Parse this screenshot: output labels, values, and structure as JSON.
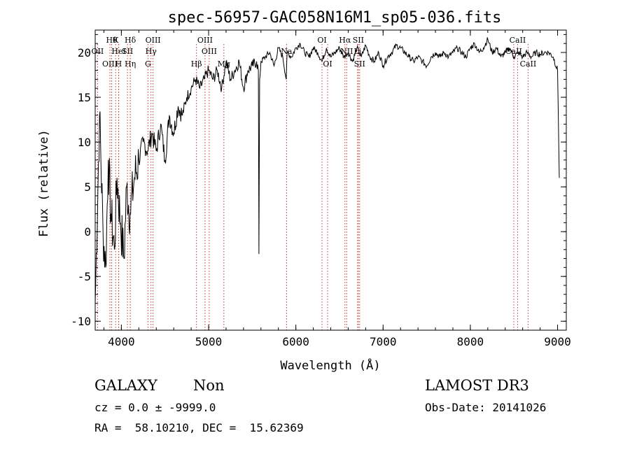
{
  "chart_data": {
    "type": "line",
    "title": "spec-56957-GAC058N16M1_sp05-036.fits",
    "xlabel": "Wavelength (Å)",
    "ylabel": "Flux (relative)",
    "xlim": [
      3700,
      9100
    ],
    "ylim": [
      -11,
      22.5
    ],
    "xticks": [
      4000,
      5000,
      6000,
      7000,
      8000,
      9000
    ],
    "yticks": [
      -10,
      -5,
      0,
      5,
      10,
      15,
      20
    ],
    "grid": false,
    "series": [
      {
        "name": "flux",
        "color": "#000000",
        "x": [
          3700,
          3750,
          3790,
          3820,
          3850,
          3880,
          3920,
          3950,
          3990,
          4030,
          4060,
          4100,
          4150,
          4200,
          4250,
          4300,
          4350,
          4400,
          4450,
          4500,
          4550,
          4600,
          4650,
          4700,
          4750,
          4800,
          4850,
          4900,
          4950,
          5000,
          5050,
          5100,
          5150,
          5200,
          5250,
          5300,
          5350,
          5400,
          5450,
          5500,
          5550,
          5570,
          5577,
          5585,
          5600,
          5650,
          5700,
          5750,
          5800,
          5850,
          5890,
          5900,
          5950,
          6000,
          6050,
          6100,
          6150,
          6200,
          6250,
          6300,
          6350,
          6400,
          6450,
          6500,
          6550,
          6600,
          6650,
          6700,
          6750,
          6800,
          6850,
          6900,
          6950,
          7000,
          7050,
          7100,
          7150,
          7200,
          7250,
          7300,
          7350,
          7400,
          7450,
          7500,
          7550,
          7600,
          7650,
          7700,
          7750,
          7800,
          7850,
          7900,
          7950,
          8000,
          8050,
          8100,
          8150,
          8200,
          8250,
          8300,
          8350,
          8400,
          8450,
          8500,
          8550,
          8600,
          8650,
          8700,
          8750,
          8800,
          8850,
          8900,
          8950,
          9000,
          9020
        ],
        "y": [
          -8,
          13,
          0,
          -4,
          8,
          2,
          -2,
          6,
          1,
          -3,
          5,
          2,
          6,
          8,
          10,
          9,
          11,
          9,
          12,
          8,
          13,
          11,
          14,
          13,
          15,
          16,
          17,
          16,
          17,
          18,
          17,
          18,
          16,
          19,
          17,
          18,
          19,
          16,
          18,
          18.5,
          19,
          18,
          -2.5,
          17,
          19,
          19.5,
          20,
          18.5,
          20.5,
          19.5,
          17,
          20,
          19.5,
          20.5,
          21,
          20,
          19.5,
          20.5,
          20,
          19,
          20.5,
          19.5,
          20,
          20.5,
          19.5,
          20,
          19,
          20.5,
          19.5,
          20.8,
          19.5,
          19,
          20,
          18.5,
          19.5,
          20,
          20.8,
          20.5,
          20,
          19.5,
          19,
          19.5,
          19,
          18.5,
          19.5,
          20,
          19.5,
          20,
          19.5,
          20,
          20.5,
          20,
          19.5,
          20.5,
          21,
          20,
          20.5,
          21.5,
          20,
          20.5,
          19.5,
          20,
          20.5,
          19.5,
          20,
          19.5,
          20,
          19.5,
          20,
          19.8,
          20,
          20,
          19.5,
          18,
          6
        ]
      }
    ],
    "annotations": [
      "spec-56957-GAC058N16M1_sp05-036.fits",
      "GALAXY",
      "Non",
      "LAMOST DR3",
      "cz = 0.0 ± -9999.0",
      "Obs-Date: 20141026",
      "RA =  58.10210, DEC =  15.62369"
    ],
    "lines": [
      {
        "label": "OII",
        "wavelength": 3727,
        "row": 1
      },
      {
        "label": "OIII",
        "wavelength": 3869,
        "row": 2
      },
      {
        "label": "Hθ",
        "wavelength": 3889,
        "row": 0
      },
      {
        "label": "K",
        "wavelength": 3934,
        "row": 0
      },
      {
        "label": "HeI",
        "wavelength": 3970,
        "row": 1
      },
      {
        "label": "Hη",
        "wavelength": 4102,
        "row": 2
      },
      {
        "label": "SII",
        "wavelength": 4070,
        "row": 1
      },
      {
        "label": "H",
        "wavelength": 3968,
        "row": 2
      },
      {
        "label": "Hδ",
        "wavelength": 4102,
        "row": 0
      },
      {
        "label": "OIII",
        "wavelength": 4363,
        "row": 0
      },
      {
        "label": "Hγ",
        "wavelength": 4340,
        "row": 1
      },
      {
        "label": "G",
        "wavelength": 4305,
        "row": 2
      },
      {
        "label": "OIII",
        "wavelength": 4959,
        "row": 0
      },
      {
        "label": "OIII",
        "wavelength": 5007,
        "row": 1
      },
      {
        "label": "Hβ",
        "wavelength": 4861,
        "row": 2
      },
      {
        "label": "Mg",
        "wavelength": 5175,
        "row": 2
      },
      {
        "label": "Na",
        "wavelength": 5893,
        "row": 1
      },
      {
        "label": "OI",
        "wavelength": 6300,
        "row": 0
      },
      {
        "label": "OI",
        "wavelength": 6364,
        "row": 2
      },
      {
        "label": "Hα",
        "wavelength": 6563,
        "row": 0
      },
      {
        "label": "SII",
        "wavelength": 6716,
        "row": 0
      },
      {
        "label": "NII",
        "wavelength": 6583,
        "row": 1
      },
      {
        "label": "Li",
        "wavelength": 6708,
        "row": 1
      },
      {
        "label": "SII",
        "wavelength": 6731,
        "row": 2
      },
      {
        "label": "CaII",
        "wavelength": 8542,
        "row": 0
      },
      {
        "label": "CaII",
        "wavelength": 8498,
        "row": 1
      },
      {
        "label": "CaII",
        "wavelength": 8662,
        "row": 2
      }
    ]
  }
}
